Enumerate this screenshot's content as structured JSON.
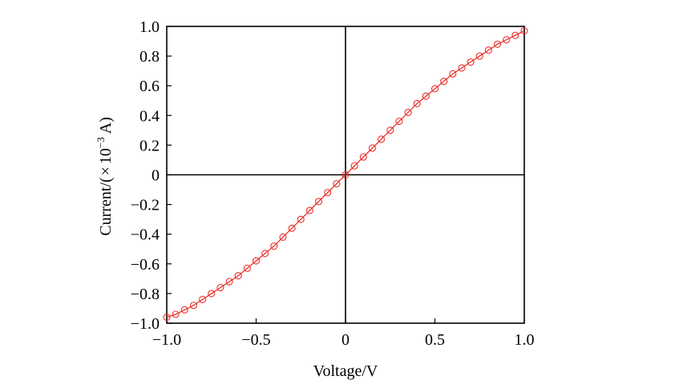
{
  "chart_data": {
    "type": "scatter",
    "title": "",
    "xlabel": "Voltage/V",
    "ylabel": {
      "prefix": "Current/(",
      "times": "×",
      "base": "10",
      "exponent": "−3",
      "unit": "A)"
    },
    "xlim": [
      -1.0,
      1.0
    ],
    "ylim": [
      -1.0,
      1.0
    ],
    "xticks": [
      {
        "value": -1.0,
        "label": "−1.0"
      },
      {
        "value": -0.5,
        "label": "−0.5"
      },
      {
        "value": 0,
        "label": "0"
      },
      {
        "value": 0.5,
        "label": "0.5"
      },
      {
        "value": 1.0,
        "label": "1.0"
      }
    ],
    "yticks": [
      {
        "value": 1.0,
        "label": "1.0"
      },
      {
        "value": 0.8,
        "label": "0.8"
      },
      {
        "value": 0.6,
        "label": "0.6"
      },
      {
        "value": 0.4,
        "label": "0.4"
      },
      {
        "value": 0.2,
        "label": "0.2"
      },
      {
        "value": 0,
        "label": "0"
      },
      {
        "value": -0.2,
        "label": "−0.2"
      },
      {
        "value": -0.4,
        "label": "−0.4"
      },
      {
        "value": -0.6,
        "label": "−0.6"
      },
      {
        "value": -0.8,
        "label": "−0.8"
      },
      {
        "value": -1.0,
        "label": "−1.0"
      }
    ],
    "zero_lines": true,
    "grid": false,
    "series": [
      {
        "color": "#e8322d",
        "marker": "open-circle",
        "line": true,
        "x": [
          -1.0,
          -0.95,
          -0.9,
          -0.85,
          -0.8,
          -0.75,
          -0.7,
          -0.65,
          -0.6,
          -0.55,
          -0.5,
          -0.45,
          -0.4,
          -0.35,
          -0.3,
          -0.25,
          -0.2,
          -0.15,
          -0.1,
          -0.05,
          0,
          0.05,
          0.1,
          0.15,
          0.2,
          0.25,
          0.3,
          0.35,
          0.4,
          0.45,
          0.5,
          0.55,
          0.6,
          0.65,
          0.7,
          0.75,
          0.8,
          0.85,
          0.9,
          0.95,
          1.0
        ],
        "y": [
          -0.96,
          -0.94,
          -0.91,
          -0.88,
          -0.84,
          -0.8,
          -0.76,
          -0.72,
          -0.68,
          -0.63,
          -0.58,
          -0.53,
          -0.48,
          -0.42,
          -0.36,
          -0.3,
          -0.24,
          -0.18,
          -0.12,
          -0.06,
          0,
          0.06,
          0.12,
          0.18,
          0.24,
          0.3,
          0.36,
          0.42,
          0.48,
          0.53,
          0.58,
          0.63,
          0.68,
          0.72,
          0.76,
          0.8,
          0.84,
          0.88,
          0.91,
          0.94,
          0.97
        ]
      }
    ]
  }
}
